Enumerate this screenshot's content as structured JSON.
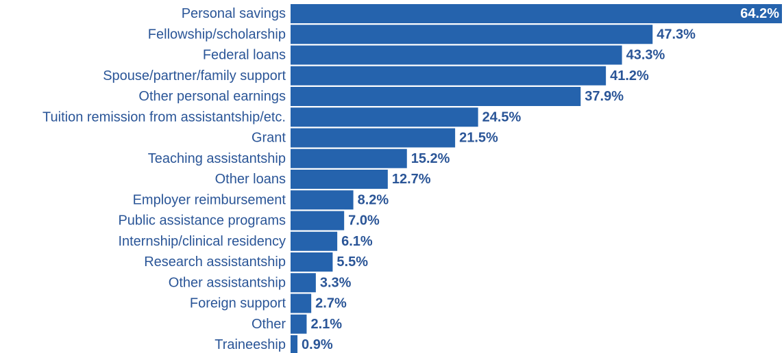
{
  "chart_data": {
    "type": "bar",
    "orientation": "horizontal",
    "title": "",
    "xlabel": "",
    "ylabel": "",
    "grid": false,
    "legend": "none",
    "xlim": [
      0,
      64.2
    ],
    "categories": [
      "Personal savings",
      "Fellowship/scholarship",
      "Federal loans",
      "Spouse/partner/family support",
      "Other personal earnings",
      "Tuition remission from assistantship/etc.",
      "Grant",
      "Teaching assistantship",
      "Other loans",
      "Employer reimbursement",
      "Public assistance programs",
      "Internship/clinical residency",
      "Research assistantship",
      "Other assistantship",
      "Foreign support",
      "Other",
      "Traineeship"
    ],
    "values": [
      64.2,
      47.3,
      43.3,
      41.2,
      37.9,
      24.5,
      21.5,
      15.2,
      12.7,
      8.2,
      7.0,
      6.1,
      5.5,
      3.3,
      2.7,
      2.1,
      0.9
    ],
    "value_labels": [
      "64.2%",
      "47.3%",
      "43.3%",
      "41.2%",
      "37.9%",
      "24.5%",
      "21.5%",
      "15.2%",
      "12.7%",
      "8.2%",
      "7.0%",
      "6.1%",
      "5.5%",
      "3.3%",
      "2.7%",
      "2.1%",
      "0.9%"
    ],
    "colors": {
      "bar": "#2563ad",
      "label": "#2a5597",
      "inside_label": "#ffffff"
    }
  }
}
